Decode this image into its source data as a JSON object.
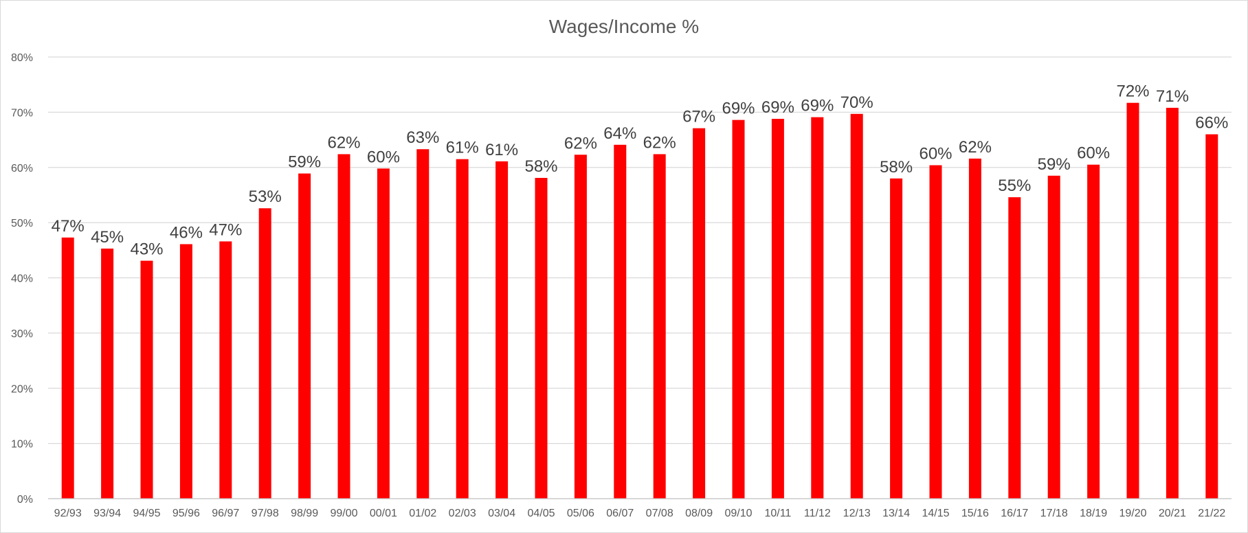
{
  "chart_data": {
    "type": "bar",
    "title": "Wages/Income %",
    "xlabel": "",
    "ylabel": "",
    "ylim": [
      0,
      80
    ],
    "yticks": [
      "0%",
      "10%",
      "20%",
      "30%",
      "40%",
      "50%",
      "60%",
      "70%",
      "80%"
    ],
    "grid": true,
    "legend": "none",
    "bar_color": "#ff0000",
    "categories": [
      "92/93",
      "93/94",
      "94/95",
      "95/96",
      "96/97",
      "97/98",
      "98/99",
      "99/00",
      "00/01",
      "01/02",
      "02/03",
      "03/04",
      "04/05",
      "05/06",
      "06/07",
      "07/08",
      "08/09",
      "09/10",
      "10/11",
      "11/12",
      "12/13",
      "13/14",
      "14/15",
      "15/16",
      "16/17",
      "17/18",
      "18/19",
      "19/20",
      "20/21",
      "21/22"
    ],
    "values": [
      47.3,
      45.3,
      43.1,
      46.1,
      46.6,
      52.6,
      58.9,
      62.4,
      59.8,
      63.3,
      61.5,
      61.1,
      58.1,
      62.3,
      64.1,
      62.4,
      67.1,
      68.6,
      68.8,
      69.1,
      69.7,
      58.0,
      60.4,
      61.6,
      54.6,
      58.5,
      60.5,
      71.7,
      70.8,
      66.0
    ],
    "data_labels": [
      "47%",
      "45%",
      "43%",
      "46%",
      "47%",
      "53%",
      "59%",
      "62%",
      "60%",
      "63%",
      "61%",
      "61%",
      "58%",
      "62%",
      "64%",
      "62%",
      "67%",
      "69%",
      "69%",
      "69%",
      "70%",
      "58%",
      "60%",
      "62%",
      "55%",
      "59%",
      "60%",
      "72%",
      "71%",
      "66%"
    ]
  }
}
